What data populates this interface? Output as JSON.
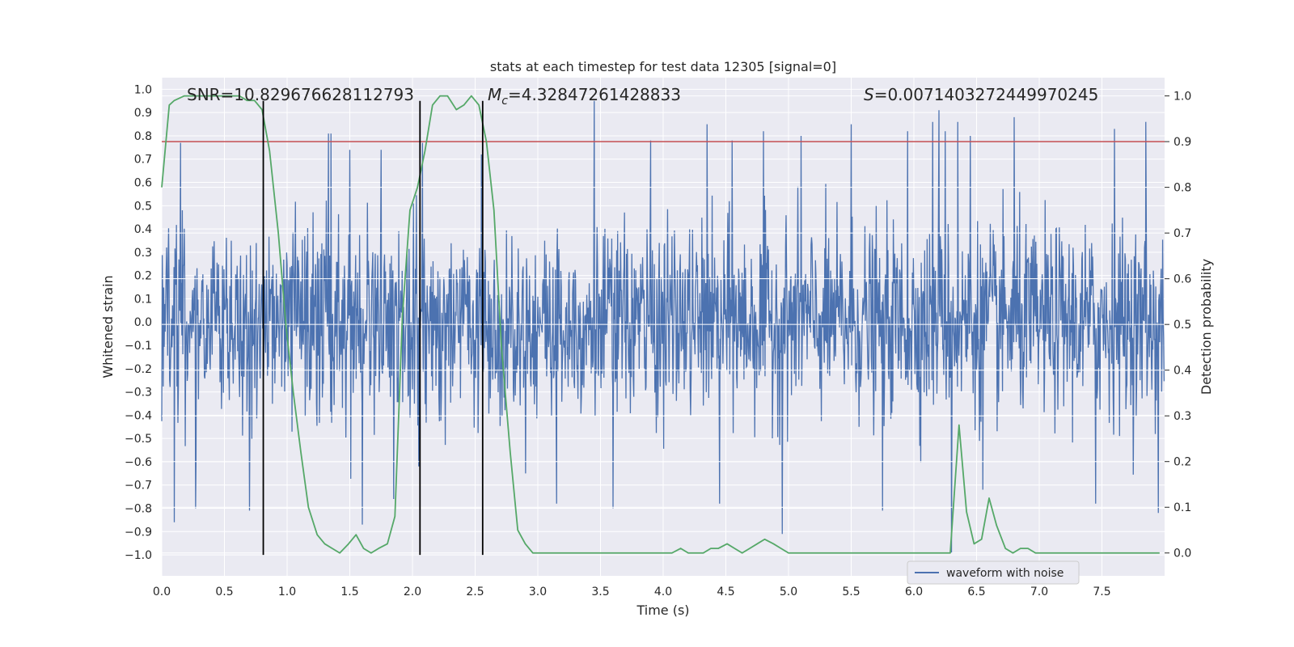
{
  "chart_data": {
    "type": "line",
    "title": "stats at each timestep for test data 12305 [signal=0]",
    "xlabel": "Time (s)",
    "ylabel_left": "Whitened strain",
    "ylabel_right": "Detection probability",
    "xlim": [
      0.0,
      8.0
    ],
    "ylim_left": [
      -1.09,
      1.05
    ],
    "ylim_right": [
      -0.05,
      1.04
    ],
    "x_ticks": [
      "0.0",
      "0.5",
      "1.0",
      "1.5",
      "2.0",
      "2.5",
      "3.0",
      "3.5",
      "4.0",
      "4.5",
      "5.0",
      "5.5",
      "6.0",
      "6.5",
      "7.0",
      "7.5"
    ],
    "x_tick_values": [
      0.0,
      0.5,
      1.0,
      1.5,
      2.0,
      2.5,
      3.0,
      3.5,
      4.0,
      4.5,
      5.0,
      5.5,
      6.0,
      6.5,
      7.0,
      7.5
    ],
    "y_ticks_left": [
      "1.0",
      "0.9",
      "0.8",
      "0.7",
      "0.6",
      "0.5",
      "0.4",
      "0.3",
      "0.2",
      "0.1",
      "0.0",
      "-0.1",
      "-0.2",
      "-0.3",
      "-0.4",
      "-0.5",
      "-0.6",
      "-0.7",
      "-0.8",
      "-0.9",
      "-1.0"
    ],
    "y_tick_values_left": [
      1.0,
      0.9,
      0.8,
      0.7,
      0.6,
      0.5,
      0.4,
      0.3,
      0.2,
      0.1,
      0.0,
      -0.1,
      -0.2,
      -0.3,
      -0.4,
      -0.5,
      -0.6,
      -0.7,
      -0.8,
      -0.9,
      -1.0
    ],
    "y_ticks_right": [
      "1.0",
      "0.9",
      "0.8",
      "0.7",
      "0.6",
      "0.5",
      "0.4",
      "0.3",
      "0.2",
      "0.1",
      "0.0"
    ],
    "y_tick_values_right": [
      1.0,
      0.9,
      0.8,
      0.7,
      0.6,
      0.5,
      0.4,
      0.3,
      0.2,
      0.1,
      0.0
    ],
    "threshold": 0.9,
    "event_lines_x": [
      0.81,
      2.06,
      2.56
    ],
    "annotations": {
      "snr": "SNR=10.829676628112793",
      "mc_prefix": "M",
      "mc_sub": "c",
      "mc_value": "=4.32847261428833",
      "s_prefix": "S",
      "s_value": "=0.0071403272449970245"
    },
    "legend": [
      {
        "label": "waveform with noise",
        "color": "#4c72b0"
      }
    ],
    "waveform": {
      "name": "waveform with noise",
      "n_samples": 2048,
      "peak_samples": [
        [
          0.15,
          0.77
        ],
        [
          0.81,
          0.57
        ],
        [
          1.33,
          0.81
        ],
        [
          1.35,
          0.81
        ],
        [
          1.5,
          0.74
        ],
        [
          1.75,
          0.74
        ],
        [
          2.08,
          0.77
        ],
        [
          2.55,
          0.72
        ],
        [
          3.45,
          0.95
        ],
        [
          3.9,
          0.78
        ],
        [
          4.35,
          0.85
        ],
        [
          4.55,
          0.78
        ],
        [
          4.8,
          0.82
        ],
        [
          5.1,
          0.8
        ],
        [
          5.5,
          0.85
        ],
        [
          5.95,
          0.82
        ],
        [
          6.15,
          0.86
        ],
        [
          6.2,
          0.91
        ],
        [
          6.25,
          0.82
        ],
        [
          6.35,
          0.86
        ],
        [
          6.45,
          0.8
        ],
        [
          6.8,
          0.88
        ],
        [
          7.6,
          0.83
        ],
        [
          7.85,
          0.86
        ],
        [
          0.1,
          -0.86
        ],
        [
          0.27,
          -0.8
        ],
        [
          0.7,
          -0.81
        ],
        [
          1.6,
          -0.87
        ],
        [
          1.85,
          -0.76
        ],
        [
          2.05,
          -0.62
        ],
        [
          3.15,
          -0.78
        ],
        [
          3.6,
          -0.8
        ],
        [
          4.45,
          -0.78
        ],
        [
          4.95,
          -0.91
        ],
        [
          5.75,
          -0.81
        ],
        [
          6.3,
          -0.99
        ],
        [
          6.55,
          -0.72
        ],
        [
          7.45,
          -0.78
        ],
        [
          7.95,
          -0.82
        ]
      ]
    },
    "probability": {
      "name": "Detection probability",
      "x": [
        0.0,
        0.06,
        0.1,
        0.18,
        0.25,
        0.31,
        0.37,
        0.44,
        0.5,
        0.56,
        0.62,
        0.68,
        0.74,
        0.8,
        0.86,
        0.93,
        0.99,
        1.05,
        1.11,
        1.17,
        1.24,
        1.3,
        1.36,
        1.42,
        1.49,
        1.55,
        1.61,
        1.67,
        1.73,
        1.8,
        1.86,
        1.92,
        1.98,
        2.04,
        2.1,
        2.16,
        2.22,
        2.28,
        2.35,
        2.41,
        2.47,
        2.53,
        2.59,
        2.65,
        2.71,
        2.78,
        2.84,
        2.9,
        2.96,
        3.02,
        3.08,
        3.15,
        3.21,
        3.27,
        3.33,
        3.39,
        3.46,
        3.52,
        3.58,
        3.64,
        3.7,
        3.77,
        3.83,
        3.89,
        3.95,
        4.01,
        4.07,
        4.14,
        4.2,
        4.26,
        4.32,
        4.38,
        4.44,
        4.51,
        4.57,
        4.63,
        4.69,
        4.75,
        4.81,
        4.88,
        4.94,
        5.0,
        5.06,
        5.12,
        5.18,
        5.25,
        5.31,
        5.37,
        5.43,
        5.49,
        5.55,
        5.62,
        5.68,
        5.74,
        5.8,
        5.86,
        5.93,
        5.99,
        6.05,
        6.11,
        6.17,
        6.23,
        6.29,
        6.36,
        6.42,
        6.48,
        6.54,
        6.6,
        6.66,
        6.73,
        6.79,
        6.85,
        6.91,
        6.97,
        7.03,
        7.1,
        7.16,
        7.22,
        7.28,
        7.34,
        7.4,
        7.47,
        7.53,
        7.59,
        7.65,
        7.71,
        7.78,
        7.84,
        7.9,
        7.96
      ],
      "y": [
        0.8,
        0.98,
        0.99,
        1.0,
        1.0,
        1.0,
        1.0,
        1.0,
        1.0,
        1.0,
        1.0,
        0.99,
        0.99,
        0.97,
        0.88,
        0.7,
        0.5,
        0.35,
        0.22,
        0.1,
        0.04,
        0.02,
        0.01,
        0.0,
        0.02,
        0.04,
        0.01,
        0.0,
        0.01,
        0.02,
        0.08,
        0.52,
        0.75,
        0.8,
        0.88,
        0.98,
        1.0,
        1.0,
        0.97,
        0.98,
        1.0,
        0.98,
        0.9,
        0.75,
        0.45,
        0.22,
        0.05,
        0.02,
        0.0,
        0.0,
        0.0,
        0.0,
        0.0,
        0.0,
        0.0,
        0.0,
        0.0,
        0.0,
        0.0,
        0.0,
        0.0,
        0.0,
        0.0,
        0.0,
        0.0,
        0.0,
        0.0,
        0.01,
        0.0,
        0.0,
        0.0,
        0.01,
        0.01,
        0.02,
        0.01,
        0.0,
        0.01,
        0.02,
        0.03,
        0.02,
        0.01,
        0.0,
        0.0,
        0.0,
        0.0,
        0.0,
        0.0,
        0.0,
        0.0,
        0.0,
        0.0,
        0.0,
        0.0,
        0.0,
        0.0,
        0.0,
        0.0,
        0.0,
        0.0,
        0.0,
        0.0,
        0.0,
        0.0,
        0.28,
        0.09,
        0.02,
        0.03,
        0.12,
        0.06,
        0.01,
        0.0,
        0.01,
        0.01,
        0.0,
        0.0,
        0.0,
        0.0,
        0.0,
        0.0,
        0.0,
        0.0,
        0.0,
        0.0,
        0.0,
        0.0,
        0.0,
        0.0,
        0.0,
        0.0,
        0.0
      ]
    }
  },
  "colors": {
    "plot_bg": "#eaeaf2",
    "grid": "#ffffff",
    "waveform": "#4c72b0",
    "probability": "#55a868",
    "threshold": "#c44e52",
    "event_line": "#000000",
    "text": "#262626"
  }
}
